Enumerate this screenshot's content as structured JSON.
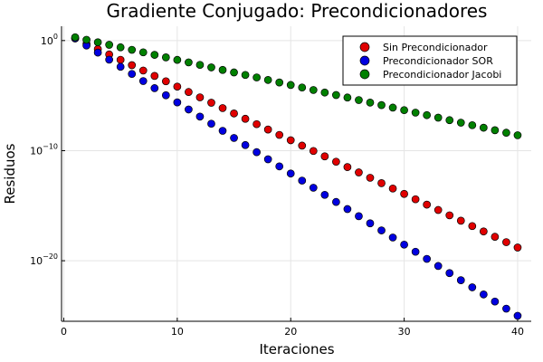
{
  "chart_data": {
    "type": "scatter",
    "title": "Gradiente Conjugado: Precondicionadores",
    "xlabel": "Iteraciones",
    "ylabel": "Residuos",
    "xlim": [
      -0.2,
      41.2
    ],
    "ylim_log10": [
      -25.5,
      1.3
    ],
    "y_scale": "log10",
    "grid": true,
    "legend_position": "top-right",
    "x_ticks": [
      0,
      10,
      20,
      30,
      40
    ],
    "x_tick_labels": [
      "0",
      "10",
      "20",
      "30",
      "40"
    ],
    "y_ticks_log10": [
      0,
      -10,
      -20
    ],
    "y_tick_labels": [
      {
        "base": "10",
        "exp": "0"
      },
      {
        "base": "10",
        "exp": "−10"
      },
      {
        "base": "10",
        "exp": "−20"
      }
    ],
    "series": [
      {
        "name": "Sin Precondicionador",
        "color": "#e00000",
        "x_start": 1,
        "x_end": 40,
        "log10_start": 0.2,
        "log10_end": -18.8
      },
      {
        "name": "Precondicionador SOR",
        "color": "#0000e0",
        "x_start": 1,
        "x_end": 40,
        "log10_start": 0.2,
        "log10_end": -25.0
      },
      {
        "name": "Precondicionador Jacobi",
        "color": "#008000",
        "x_start": 1,
        "x_end": 40,
        "log10_start": 0.3,
        "log10_end": -8.6
      }
    ]
  }
}
